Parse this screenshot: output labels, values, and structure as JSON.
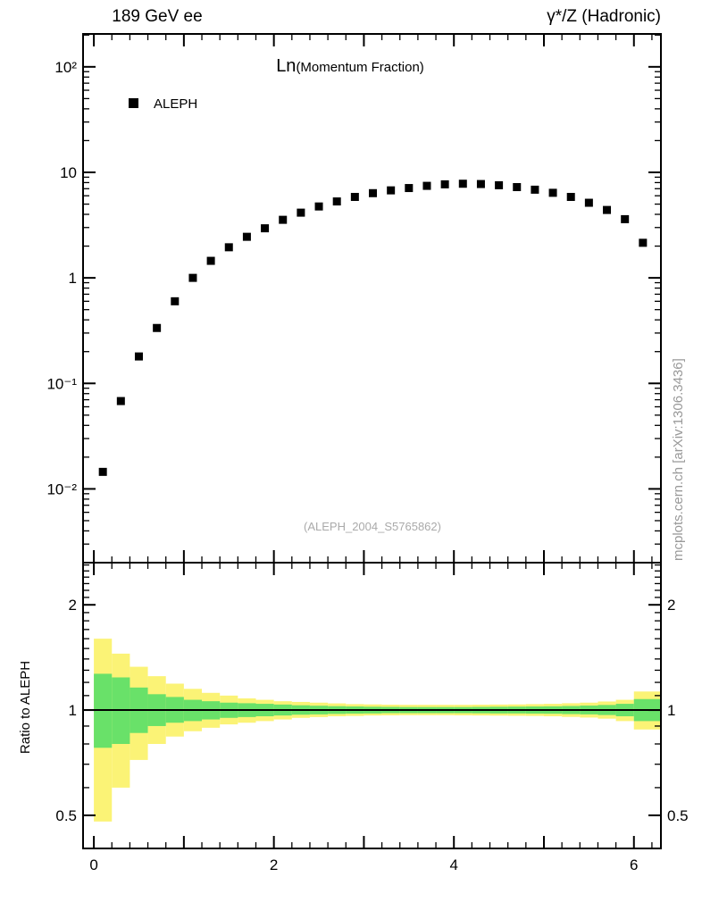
{
  "header": {
    "left_title": "189 GeV ee",
    "right_title": "γ*/Z (Hadronic)"
  },
  "main_panel": {
    "title_main": "Ln",
    "title_sub": "(Momentum Fraction)",
    "legend_label": "ALEPH",
    "watermark": "(ALEPH_2004_S5765862)",
    "y_tick_labels": [
      "10²",
      "10",
      "1",
      "10⁻¹",
      "10⁻²"
    ],
    "y_tick_values": [
      100,
      10,
      1,
      0.1,
      0.01
    ]
  },
  "ratio_panel": {
    "ylabel": "Ratio to ALEPH",
    "y_tick_labels": [
      "2",
      "1",
      "0.5"
    ],
    "y_tick_values": [
      2,
      1,
      0.5
    ]
  },
  "x_axis": {
    "tick_labels": [
      "0",
      "2",
      "4",
      "6"
    ],
    "tick_values": [
      0,
      2,
      4,
      6
    ]
  },
  "sidebar_note": "mcplots.cern.ch [arXiv:1306.3436]",
  "colors": {
    "marker": "#000000",
    "band_outer": "#fbf376",
    "band_inner": "#69e169",
    "unity_line": "#000000",
    "watermark": "#aaaaaa",
    "note": "#999999"
  },
  "chart_data": {
    "type": "scatter",
    "title": "Ln(Momentum Fraction)",
    "xlabel": "",
    "ylabel": "",
    "x_range": [
      -0.12,
      6.3
    ],
    "y_scale": "log",
    "y_range": [
      0.002,
      205
    ],
    "grid": false,
    "legend_position": "top-left-inside",
    "series": [
      {
        "name": "ALEPH",
        "marker": "filled-square",
        "x": [
          0.1,
          0.3,
          0.5,
          0.7,
          0.9,
          1.1,
          1.3,
          1.5,
          1.7,
          1.9,
          2.1,
          2.3,
          2.5,
          2.7,
          2.9,
          3.1,
          3.3,
          3.5,
          3.7,
          3.9,
          4.1,
          4.3,
          4.5,
          4.7,
          4.9,
          5.1,
          5.3,
          5.5,
          5.7,
          5.9,
          6.1
        ],
        "y": [
          0.0145,
          0.068,
          0.18,
          0.335,
          0.6,
          1.0,
          1.45,
          1.95,
          2.45,
          2.95,
          3.55,
          4.15,
          4.75,
          5.3,
          5.85,
          6.35,
          6.75,
          7.1,
          7.45,
          7.7,
          7.8,
          7.75,
          7.55,
          7.25,
          6.85,
          6.4,
          5.85,
          5.15,
          4.4,
          3.6,
          2.15
        ]
      }
    ],
    "ratio": {
      "name": "Ratio to ALEPH",
      "y_scale": "log",
      "y_range": [
        0.402,
        2.64
      ],
      "unity_line": 1,
      "bin_half_width": 0.1,
      "x": [
        0.1,
        0.3,
        0.5,
        0.7,
        0.9,
        1.1,
        1.3,
        1.5,
        1.7,
        1.9,
        2.1,
        2.3,
        2.5,
        2.7,
        2.9,
        3.1,
        3.3,
        3.5,
        3.7,
        3.9,
        4.1,
        4.3,
        4.5,
        4.7,
        4.9,
        5.1,
        5.3,
        5.5,
        5.7,
        5.9,
        6.1
      ],
      "yellow_lo": [
        0.48,
        0.6,
        0.72,
        0.8,
        0.84,
        0.87,
        0.89,
        0.91,
        0.92,
        0.93,
        0.94,
        0.95,
        0.955,
        0.96,
        0.962,
        0.965,
        0.966,
        0.967,
        0.967,
        0.967,
        0.966,
        0.965,
        0.964,
        0.963,
        0.962,
        0.96,
        0.956,
        0.952,
        0.945,
        0.93,
        0.88
      ],
      "yellow_hi": [
        1.6,
        1.45,
        1.33,
        1.25,
        1.19,
        1.15,
        1.12,
        1.1,
        1.08,
        1.07,
        1.06,
        1.055,
        1.05,
        1.045,
        1.04,
        1.038,
        1.036,
        1.035,
        1.035,
        1.035,
        1.035,
        1.036,
        1.037,
        1.038,
        1.04,
        1.042,
        1.046,
        1.05,
        1.058,
        1.07,
        1.13
      ],
      "green_lo": [
        0.78,
        0.8,
        0.86,
        0.9,
        0.92,
        0.93,
        0.94,
        0.95,
        0.955,
        0.96,
        0.965,
        0.97,
        0.972,
        0.975,
        0.977,
        0.978,
        0.98,
        0.98,
        0.98,
        0.98,
        0.98,
        0.979,
        0.978,
        0.978,
        0.977,
        0.976,
        0.974,
        0.972,
        0.968,
        0.96,
        0.93
      ],
      "green_hi": [
        1.27,
        1.24,
        1.16,
        1.11,
        1.09,
        1.07,
        1.06,
        1.05,
        1.046,
        1.042,
        1.037,
        1.032,
        1.029,
        1.026,
        1.024,
        1.022,
        1.021,
        1.02,
        1.02,
        1.02,
        1.02,
        1.021,
        1.022,
        1.023,
        1.024,
        1.025,
        1.027,
        1.03,
        1.034,
        1.042,
        1.075
      ]
    }
  }
}
